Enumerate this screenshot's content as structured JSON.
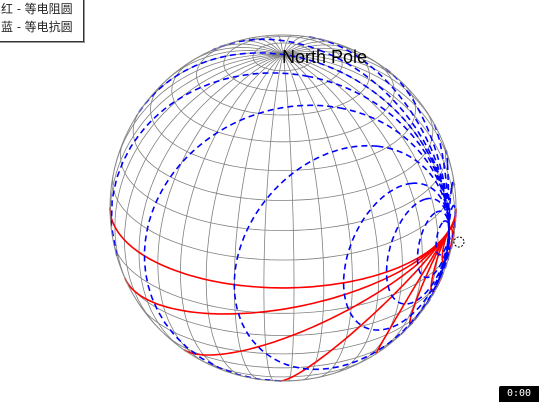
{
  "legend": {
    "resistance_label": "红 - 等电阻圆",
    "reactance_label": "蓝 - 等电抗圆"
  },
  "diagram": {
    "title": "North Pole",
    "resistance_color": "#ff0000",
    "reactance_color": "#0000ff",
    "grid_color": "#808080",
    "resistance_values": [
      0,
      0.2,
      0.5,
      1,
      2,
      3,
      5,
      10
    ],
    "reactance_values": [
      0.2,
      0.5,
      1,
      2,
      3,
      5,
      10
    ]
  },
  "player": {
    "time": "0:00"
  }
}
